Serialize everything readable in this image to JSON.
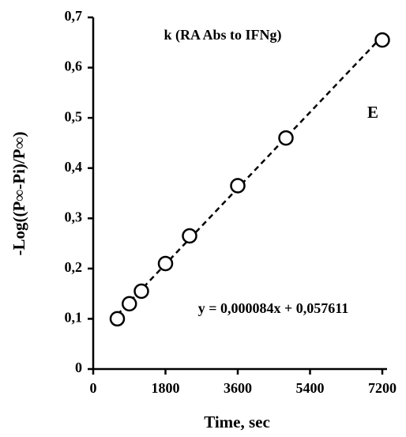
{
  "chart_data": {
    "type": "scatter",
    "title": "k (RA Abs to IFNg)",
    "annotation": "E",
    "x_label": "Time, sec",
    "y_label": "-Log((P∞-Pi)/P∞)",
    "x": [
      600,
      900,
      1200,
      1800,
      2400,
      3600,
      4800,
      7200
    ],
    "values": [
      0.1,
      0.13,
      0.155,
      0.21,
      0.265,
      0.365,
      0.46,
      0.655
    ],
    "color": "#000000",
    "trendline": {
      "label": "y = 0,000084x + 0,057611",
      "slope": 8.4e-05,
      "intercept": 0.057611
    },
    "xlim": [
      0,
      7200
    ],
    "xticks": [
      0,
      1800,
      3600,
      5400,
      7200
    ],
    "ylim": [
      0,
      0.7
    ],
    "yticks": [
      0,
      {
        "value": 0.1,
        "label": "0,1"
      },
      {
        "value": 0.2,
        "label": "0,2"
      },
      {
        "value": 0.3,
        "label": "0,3"
      },
      {
        "value": 0.4,
        "label": "0,4"
      },
      {
        "value": 0.5,
        "label": "0,5"
      },
      {
        "value": 0.6,
        "label": "0,6"
      },
      {
        "value": 0.7,
        "label": "0,7"
      }
    ],
    "grid": false
  }
}
